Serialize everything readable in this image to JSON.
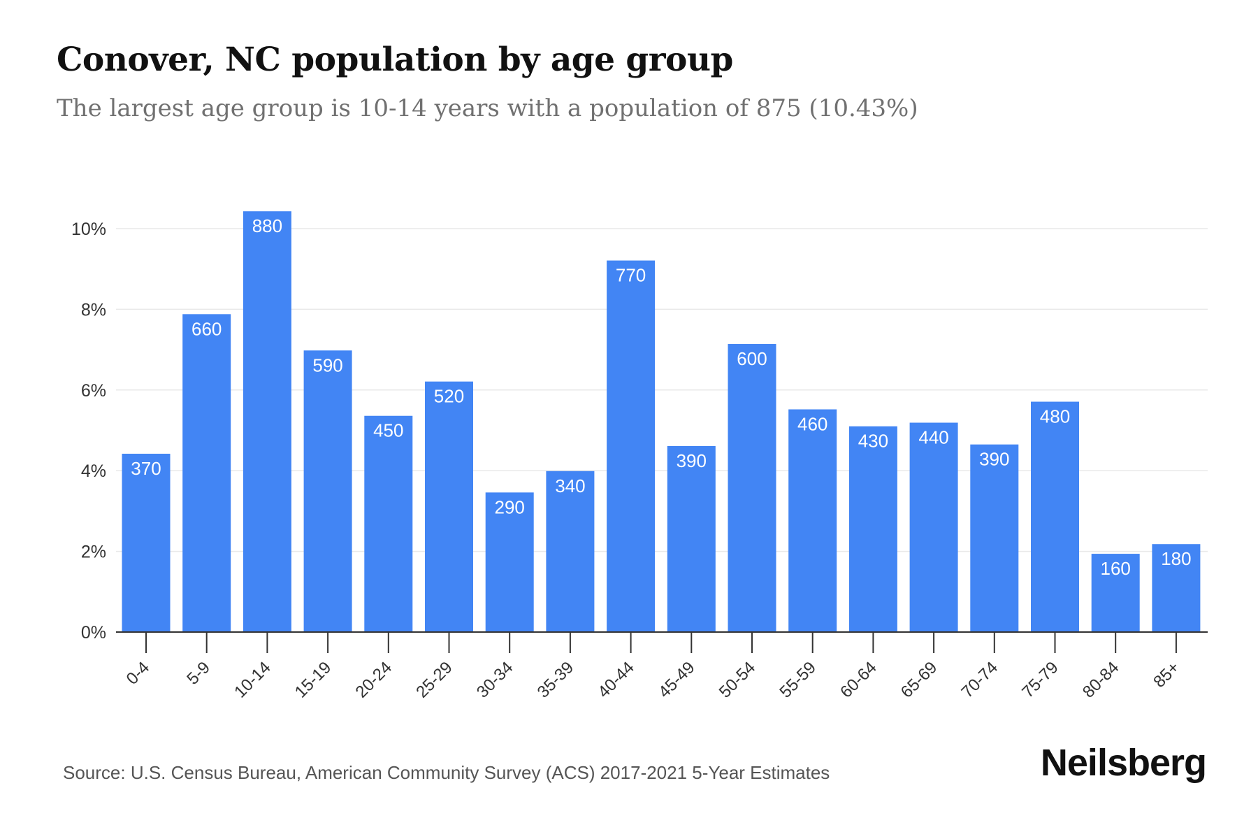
{
  "header": {
    "title": "Conover, NC population by age group",
    "subtitle": "The largest age group is 10-14 years with a population of 875 (10.43%)"
  },
  "footer": {
    "source": "Source: U.S. Census Bureau, American Community Survey (ACS) 2017-2021 5-Year Estimates",
    "brand": "Neilsberg"
  },
  "colors": {
    "bar": "#4285f4",
    "bar_label": "#ffffff",
    "axis_text": "#333333",
    "grid": "#e8e8e8",
    "axis_line": "#333333"
  },
  "chart_data": {
    "type": "bar",
    "title": "Conover, NC population by age group",
    "subtitle": "The largest age group is 10-14 years with a population of 875 (10.43%)",
    "categories": [
      "0-4",
      "5-9",
      "10-14",
      "15-19",
      "20-24",
      "25-29",
      "30-34",
      "35-39",
      "40-44",
      "45-49",
      "50-54",
      "55-59",
      "60-64",
      "65-69",
      "70-74",
      "75-79",
      "80-84",
      "85+"
    ],
    "series": [
      {
        "values": [
          4.42,
          7.88,
          10.43,
          6.98,
          5.36,
          6.21,
          3.46,
          3.99,
          9.21,
          4.61,
          7.14,
          5.52,
          5.1,
          5.19,
          4.65,
          5.71,
          1.94,
          2.18
        ]
      }
    ],
    "data_labels": [
      "370",
      "660",
      "880",
      "590",
      "450",
      "520",
      "290",
      "340",
      "770",
      "390",
      "600",
      "460",
      "430",
      "440",
      "390",
      "480",
      "160",
      "180"
    ],
    "ylim": [
      0,
      10
    ],
    "y_ticks": [
      0,
      2,
      4,
      6,
      8,
      10
    ],
    "y_tick_labels": [
      "0%",
      "2%",
      "4%",
      "6%",
      "8%",
      "10%"
    ],
    "grid": true,
    "legend": "none"
  }
}
